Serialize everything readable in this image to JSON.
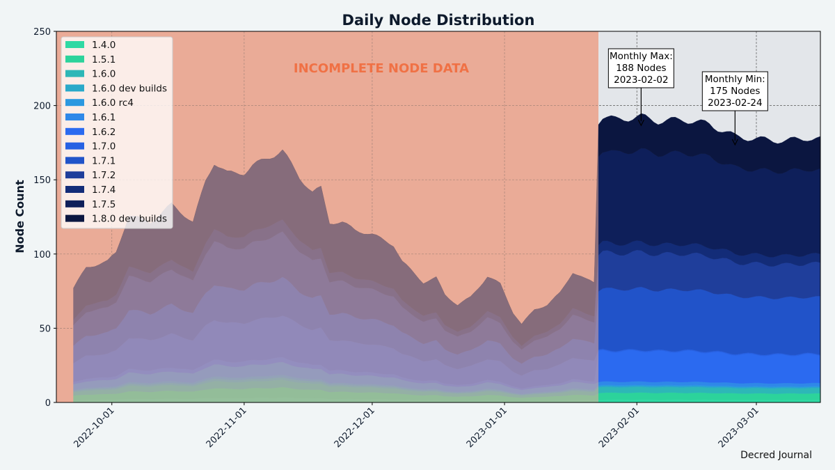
{
  "chart_data": {
    "type": "area",
    "stacked": true,
    "title": "Daily Node Distribution",
    "xlabel": "",
    "ylabel": "Node Count",
    "ylim": [
      0,
      250
    ],
    "yticks": [
      0,
      50,
      100,
      150,
      200,
      250
    ],
    "x_start": "2022-09-18",
    "x_end": "2023-03-16",
    "data_start": "2022-09-22",
    "xticks": [
      {
        "date": "2022-10-01",
        "label": "2022-10-01"
      },
      {
        "date": "2022-11-01",
        "label": "2022-11-01"
      },
      {
        "date": "2022-12-01",
        "label": "2022-12-01"
      },
      {
        "date": "2023-01-01",
        "label": "2023-01-01"
      },
      {
        "date": "2023-02-01",
        "label": "2023-02-01"
      },
      {
        "date": "2023-03-01",
        "label": "2023-03-01"
      }
    ],
    "grid": true,
    "legend_position": "upper-left",
    "incomplete_region": {
      "start": "2022-09-18",
      "end": "2023-01-23",
      "label": "INCOMPLETE NODE DATA"
    },
    "complete_region_start": "2023-01-23",
    "total_anchors": [
      [
        "2022-09-22",
        76
      ],
      [
        "2022-09-25",
        90
      ],
      [
        "2022-09-30",
        94
      ],
      [
        "2022-10-02",
        100
      ],
      [
        "2022-10-05",
        125
      ],
      [
        "2022-10-10",
        120
      ],
      [
        "2022-10-15",
        132
      ],
      [
        "2022-10-18",
        125
      ],
      [
        "2022-10-20",
        120
      ],
      [
        "2022-10-23",
        148
      ],
      [
        "2022-10-25",
        160
      ],
      [
        "2022-10-28",
        153
      ],
      [
        "2022-11-01",
        153
      ],
      [
        "2022-11-03",
        158
      ],
      [
        "2022-11-08",
        165
      ],
      [
        "2022-11-10",
        168
      ],
      [
        "2022-11-14",
        150
      ],
      [
        "2022-11-17",
        140
      ],
      [
        "2022-11-19",
        143
      ],
      [
        "2022-11-21",
        120
      ],
      [
        "2022-11-24",
        120
      ],
      [
        "2022-11-27",
        115
      ],
      [
        "2022-12-01",
        112
      ],
      [
        "2022-12-06",
        105
      ],
      [
        "2022-12-08",
        94
      ],
      [
        "2022-12-13",
        80
      ],
      [
        "2022-12-16",
        83
      ],
      [
        "2022-12-18",
        72
      ],
      [
        "2022-12-21",
        65
      ],
      [
        "2022-12-24",
        70
      ],
      [
        "2022-12-28",
        84
      ],
      [
        "2022-12-31",
        79
      ],
      [
        "2023-01-03",
        60
      ],
      [
        "2023-01-05",
        52
      ],
      [
        "2023-01-08",
        62
      ],
      [
        "2023-01-11",
        65
      ],
      [
        "2023-01-14",
        73
      ],
      [
        "2023-01-17",
        87
      ],
      [
        "2023-01-20",
        82
      ],
      [
        "2023-01-22",
        80
      ],
      [
        "2023-01-23",
        185
      ],
      [
        "2023-01-24",
        188
      ],
      [
        "2023-01-27",
        186
      ],
      [
        "2023-02-02",
        188
      ],
      [
        "2023-02-06",
        185
      ],
      [
        "2023-02-12",
        186
      ],
      [
        "2023-02-18",
        183
      ],
      [
        "2023-02-24",
        175
      ],
      [
        "2023-03-02",
        173
      ],
      [
        "2023-03-08",
        172
      ],
      [
        "2023-03-13",
        174
      ],
      [
        "2023-03-16",
        173
      ]
    ],
    "series": [
      {
        "name": "1.4.0",
        "color": "#2fd9a3",
        "incomplete_share": 0.02,
        "complete_share": 0.01
      },
      {
        "name": "1.5.1",
        "color": "#2cd39b",
        "incomplete_share": 0.04,
        "complete_share": 0.025
      },
      {
        "name": "1.6.0",
        "color": "#2db7b7",
        "incomplete_share": 0.03,
        "complete_share": 0.02
      },
      {
        "name": "1.6.0 dev builds",
        "color": "#2aa9c9",
        "incomplete_share": 0.01,
        "complete_share": 0.004
      },
      {
        "name": "1.6.0 rc4",
        "color": "#2b98e0",
        "incomplete_share": 0.01,
        "complete_share": 0.004
      },
      {
        "name": "1.6.1",
        "color": "#2f88e8",
        "incomplete_share": 0.05,
        "complete_share": 0.012
      },
      {
        "name": "1.6.2",
        "color": "#2b6af0",
        "incomplete_share": 0.02,
        "complete_share": 0.11
      },
      {
        "name": "1.7.0",
        "color": "#2761e3",
        "incomplete_share": 0.17,
        "complete_share": 0.004
      },
      {
        "name": "1.7.1",
        "color": "#2153c9",
        "incomplete_share": 0.15,
        "complete_share": 0.22
      },
      {
        "name": "1.7.2",
        "color": "#1f3e9b",
        "incomplete_share": 0.18,
        "complete_share": 0.13
      },
      {
        "name": "1.7.4",
        "color": "#132c78",
        "incomplete_share": 0.05,
        "complete_share": 0.035
      },
      {
        "name": "1.7.5",
        "color": "#0e1f5a",
        "incomplete_share": 0.28,
        "complete_share": 0.33
      },
      {
        "name": "1.8.0 dev builds",
        "color": "#0b1640",
        "incomplete_share": 0.0,
        "complete_share": 0.12
      }
    ],
    "annotations": [
      {
        "lines": [
          "Monthly Max:",
          "188 Nodes",
          "2023-02-02"
        ],
        "target_date": "2023-02-02",
        "target_value": 188
      },
      {
        "lines": [
          "Monthly Min:",
          "175 Nodes",
          "2023-02-24"
        ],
        "target_date": "2023-02-24",
        "target_value": 175
      }
    ],
    "credit": "Decred Journal"
  },
  "colors": {
    "background": "#f1f5f6",
    "incomplete_fill": "#eaab97",
    "complete_fill": "#e3e6ea",
    "incomplete_overlay": "#7a2f38",
    "accent": "#f07145"
  }
}
